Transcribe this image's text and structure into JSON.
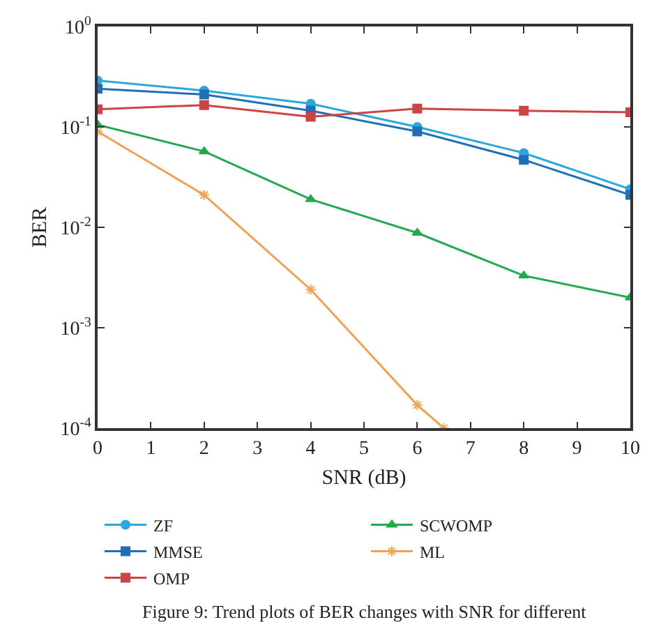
{
  "chart_data": {
    "type": "line",
    "xlabel": "SNR (dB)",
    "ylabel": "BER",
    "x": [
      0,
      2,
      4,
      6,
      8,
      10
    ],
    "series": [
      {
        "name": "ZF",
        "color": "#29a8e0",
        "marker": "circle",
        "values": [
          0.29,
          0.23,
          0.17,
          0.1,
          0.055,
          0.024
        ]
      },
      {
        "name": "MMSE",
        "color": "#1f6fb8",
        "marker": "square",
        "values": [
          0.24,
          0.21,
          0.145,
          0.09,
          0.047,
          0.021
        ]
      },
      {
        "name": "OMP",
        "color": "#cc4444",
        "marker": "square",
        "values": [
          0.15,
          0.165,
          0.126,
          0.152,
          0.145,
          0.14
        ]
      },
      {
        "name": "SCWOMP",
        "color": "#22aa4c",
        "marker": "triangle",
        "values": [
          0.105,
          0.057,
          0.019,
          0.0088,
          0.0033,
          0.002
        ]
      },
      {
        "name": "ML",
        "color": "#f4a050",
        "marker": "cross",
        "x": [
          0,
          2,
          4,
          6,
          6.5
        ],
        "values": [
          0.09,
          0.021,
          0.0024,
          0.00017,
          0.0001
        ]
      }
    ],
    "log": "y",
    "xlim": [
      0,
      10
    ],
    "xticks": [
      0,
      1,
      2,
      3,
      4,
      5,
      6,
      7,
      8,
      9,
      10
    ],
    "ylim": [
      0.0001,
      1
    ],
    "yticks": [
      {
        "value": 0.0001,
        "label": "10$^{-4}$"
      },
      {
        "value": 0.001,
        "label": "10$^{-3}$"
      },
      {
        "value": 0.01,
        "label": "10$^{-2}$"
      },
      {
        "value": 0.1,
        "label": "10$^{-1}$"
      },
      {
        "value": 1,
        "label": "10$^{0}$"
      }
    ],
    "legend": "bottom",
    "line_style": "solid",
    "annotations": [
      "Figure 9: Trend plots of BER changes with SNR for different"
    ]
  }
}
